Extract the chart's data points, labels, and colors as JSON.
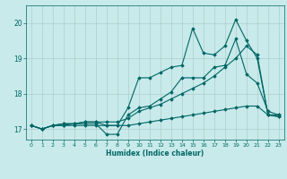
{
  "title": "",
  "xlabel": "Humidex (Indice chaleur)",
  "ylabel": "",
  "bg_color": "#c8eaea",
  "line_color": "#006666",
  "grid_color": "#b0cccc",
  "xlim": [
    -0.5,
    23.5
  ],
  "ylim": [
    16.7,
    20.5
  ],
  "yticks": [
    17,
    18,
    19,
    20
  ],
  "xticks": [
    0,
    1,
    2,
    3,
    4,
    5,
    6,
    7,
    8,
    9,
    10,
    11,
    12,
    13,
    14,
    15,
    16,
    17,
    18,
    19,
    20,
    21,
    22,
    23
  ],
  "series": [
    {
      "x": [
        0,
        1,
        2,
        3,
        4,
        5,
        6,
        7,
        8,
        9,
        10,
        11,
        12,
        13,
        14,
        15,
        16,
        17,
        18,
        19,
        20,
        21,
        22,
        23
      ],
      "y": [
        17.1,
        17.0,
        17.1,
        17.1,
        17.1,
        17.1,
        17.1,
        17.1,
        17.1,
        17.1,
        17.15,
        17.2,
        17.25,
        17.3,
        17.35,
        17.4,
        17.45,
        17.5,
        17.55,
        17.6,
        17.65,
        17.65,
        17.4,
        17.35
      ]
    },
    {
      "x": [
        0,
        1,
        2,
        3,
        4,
        5,
        6,
        7,
        8,
        9,
        10,
        11,
        12,
        13,
        14,
        15,
        16,
        17,
        18,
        19,
        20,
        21,
        22,
        23
      ],
      "y": [
        17.1,
        17.0,
        17.1,
        17.15,
        17.15,
        17.2,
        17.2,
        17.2,
        17.2,
        17.3,
        17.5,
        17.6,
        17.7,
        17.85,
        18.0,
        18.15,
        18.3,
        18.5,
        18.75,
        19.0,
        19.35,
        19.1,
        17.4,
        17.4
      ]
    },
    {
      "x": [
        0,
        1,
        2,
        3,
        4,
        5,
        6,
        7,
        8,
        9,
        10,
        11,
        12,
        13,
        14,
        15,
        16,
        17,
        18,
        19,
        20,
        21,
        22,
        23
      ],
      "y": [
        17.1,
        17.0,
        17.1,
        17.1,
        17.15,
        17.15,
        17.15,
        16.85,
        16.85,
        17.4,
        17.6,
        17.65,
        17.85,
        18.05,
        18.45,
        18.45,
        18.45,
        18.75,
        18.8,
        19.55,
        18.55,
        18.3,
        17.5,
        17.4
      ]
    },
    {
      "x": [
        0,
        1,
        2,
        3,
        4,
        5,
        6,
        7,
        8,
        9,
        10,
        11,
        12,
        13,
        14,
        15,
        16,
        17,
        18,
        19,
        20,
        21,
        22,
        23
      ],
      "y": [
        17.1,
        17.0,
        17.1,
        17.15,
        17.15,
        17.2,
        17.2,
        17.1,
        17.1,
        17.6,
        18.45,
        18.45,
        18.6,
        18.75,
        18.8,
        19.85,
        19.15,
        19.1,
        19.35,
        20.1,
        19.5,
        19.0,
        17.4,
        17.35
      ]
    }
  ]
}
